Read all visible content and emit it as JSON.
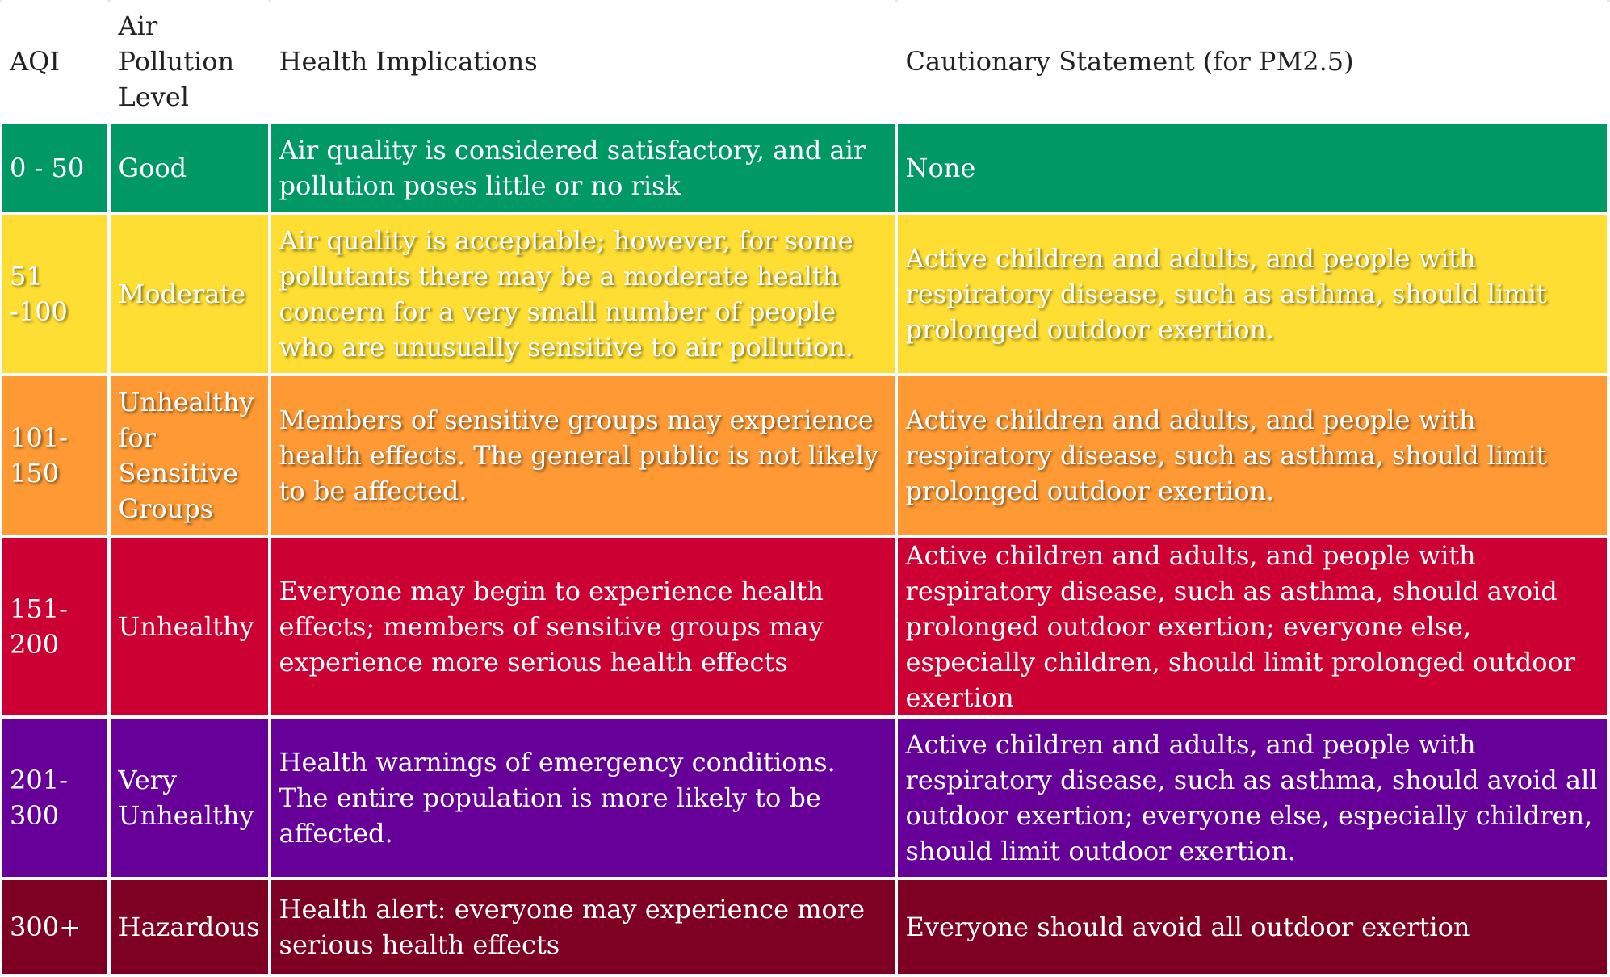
{
  "header": {
    "aqi": "AQI",
    "level": "Air Pollution Level",
    "health": "Health Implications",
    "caution": "Cautionary Statement (for PM2.5)"
  },
  "rows": [
    {
      "aqi": "0 - 50",
      "level": "Good",
      "health": "Air quality is considered satisfactory, and air pollution poses little or no risk",
      "caution": "None",
      "color": "#009966"
    },
    {
      "aqi": "51 -100",
      "level": "Moderate",
      "health": "Air quality is acceptable; however, for some pollutants there may be a moderate health concern for a very small number of people who are unusually sensitive to air pollution.",
      "caution": "Active children and adults, and people with respiratory disease, such as asthma, should limit prolonged outdoor exertion.",
      "color": "#ffde33"
    },
    {
      "aqi": "101-150",
      "level": "Unhealthy for Sensitive Groups",
      "health": "Members of sensitive groups may experience health effects. The general public is not likely to be affected.",
      "caution": "Active children and adults, and people with respiratory disease, such as asthma, should limit prolonged outdoor exertion.",
      "color": "#ff9933"
    },
    {
      "aqi": "151-200",
      "level": "Unhealthy",
      "health": "Everyone may begin to experience health effects; members of sensitive groups may experience more serious health effects",
      "caution": "Active children and adults, and people with respiratory disease, such as asthma, should avoid prolonged outdoor exertion; everyone else, especially children, should limit prolonged outdoor exertion",
      "color": "#cc0033"
    },
    {
      "aqi": "201-300",
      "level": "Very Unhealthy",
      "health": "Health warnings of emergency conditions. The entire population is more likely to be affected.",
      "caution": "Active children and adults, and people with respiratory disease, such as asthma, should avoid all outdoor exertion; everyone else, especially children, should limit outdoor exertion.",
      "color": "#660099"
    },
    {
      "aqi": "300+",
      "level": "Hazardous",
      "health": "Health alert: everyone may experience more serious health effects",
      "caution": "Everyone should avoid all outdoor exertion",
      "color": "#7e0023"
    }
  ]
}
